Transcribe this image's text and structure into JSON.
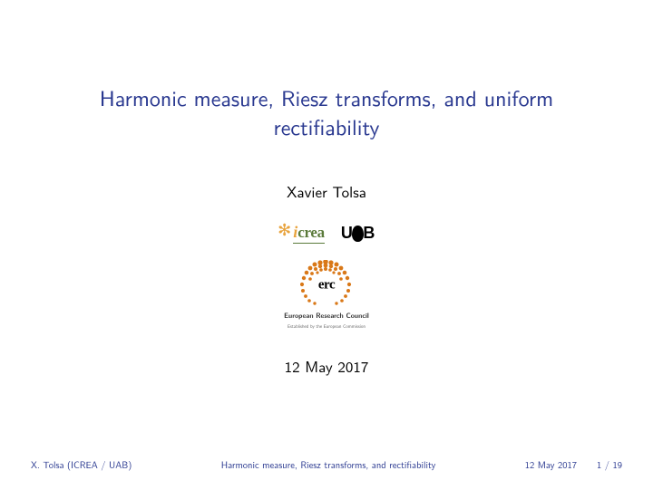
{
  "title": "Harmonic measure, Riesz transforms, and uniform rectifiability",
  "author": "Xavier Tolsa",
  "date": "12 May 2017",
  "logos": {
    "icrea": {
      "i": "i",
      "crea": "crea"
    },
    "uab": {
      "u": "U",
      "b": "B"
    },
    "erc": {
      "letters": "erc",
      "sub1": "European Research Council",
      "sub2": "Established by the European Commission",
      "dot_color": "#d97818",
      "dot_points": [
        [
          28,
          2,
          2.8
        ],
        [
          34,
          3,
          2.6
        ],
        [
          40,
          5,
          2.5
        ],
        [
          45,
          9,
          2.4
        ],
        [
          49,
          14,
          2.3
        ],
        [
          52,
          20,
          2.2
        ],
        [
          54,
          27,
          2.1
        ],
        [
          53,
          34,
          2.0
        ],
        [
          50,
          40,
          1.9
        ],
        [
          46,
          45,
          1.8
        ],
        [
          40,
          48,
          1.7
        ],
        [
          22,
          3,
          2.6
        ],
        [
          16,
          5,
          2.5
        ],
        [
          11,
          9,
          2.4
        ],
        [
          7,
          14,
          2.3
        ],
        [
          4,
          20,
          2.2
        ],
        [
          2,
          27,
          2.1
        ],
        [
          3,
          34,
          2.0
        ],
        [
          6,
          40,
          1.9
        ],
        [
          10,
          45,
          1.8
        ],
        [
          16,
          48,
          1.7
        ],
        [
          28,
          6,
          2.4
        ],
        [
          22,
          7,
          2.2
        ],
        [
          34,
          7,
          2.2
        ],
        [
          17,
          10,
          2.0
        ],
        [
          39,
          10,
          2.0
        ],
        [
          13,
          15,
          1.9
        ],
        [
          43,
          15,
          1.9
        ],
        [
          11,
          21,
          1.8
        ],
        [
          45,
          21,
          1.8
        ],
        [
          28,
          10,
          2.0
        ],
        [
          23,
          11,
          1.8
        ],
        [
          33,
          11,
          1.8
        ],
        [
          19,
          14,
          1.6
        ],
        [
          37,
          14,
          1.6
        ]
      ]
    }
  },
  "footer": {
    "author": "X. Tolsa  (ICREA / UAB)",
    "title": "Harmonic measure, Riesz transforms, and rectifiability",
    "date": "12 May 2017",
    "page": "1 / 19"
  },
  "colors": {
    "accent": "#2a3990",
    "background": "#ffffff",
    "text": "#000000"
  }
}
